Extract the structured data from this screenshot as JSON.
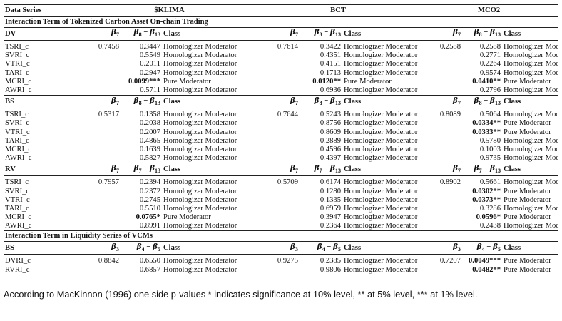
{
  "header": {
    "label": "Data Series",
    "series": [
      "$KLIMA",
      "BCT",
      "MCO2"
    ]
  },
  "sections": [
    {
      "title": "Interaction Term of Tokenized Carbon Asset On-chain Trading",
      "blocks": [
        {
          "name": "DV",
          "b_label": "β7",
          "diff_label": "β8 − β13",
          "class_label": "Class",
          "b_values": [
            "0.7458",
            "0.7614",
            "0.2588"
          ],
          "rows": [
            {
              "label": "TSRI_c",
              "cells": [
                [
                  "0.3447",
                  "Homologizer Moderator",
                  false
                ],
                [
                  "0.3422",
                  "Homologizer Moderator",
                  false
                ],
                [
                  "0.2588",
                  "Homologizer Moderator",
                  false
                ]
              ]
            },
            {
              "label": "SVRI_c",
              "cells": [
                [
                  "0.5549",
                  "Homologizer Moderator",
                  false
                ],
                [
                  "0.4351",
                  "Homologizer Moderator",
                  false
                ],
                [
                  "0.2771",
                  "Homologizer Moderator",
                  false
                ]
              ]
            },
            {
              "label": "VTRI_c",
              "cells": [
                [
                  "0.2011",
                  "Homologizer Moderator",
                  false
                ],
                [
                  "0.4151",
                  "Homologizer Moderator",
                  false
                ],
                [
                  "0.2264",
                  "Homologizer Moderator",
                  false
                ]
              ]
            },
            {
              "label": "TARI_c",
              "cells": [
                [
                  "0.2947",
                  "Homologizer Moderator",
                  false
                ],
                [
                  "0.1713",
                  "Homologizer Moderator",
                  false
                ],
                [
                  "0.9574",
                  "Homologizer Moderator",
                  false
                ]
              ]
            },
            {
              "label": "MCRI_c",
              "cells": [
                [
                  "0.0099***",
                  "Pure Moderator",
                  true
                ],
                [
                  "0.0120**",
                  "Pure Moderator",
                  true
                ],
                [
                  "0.0410**",
                  "Pure Moderator",
                  true
                ]
              ]
            },
            {
              "label": "AWRI_c",
              "cells": [
                [
                  "0.5711",
                  "Homologizer Moderator",
                  false
                ],
                [
                  "0.6936",
                  "Homologizer Moderator",
                  false
                ],
                [
                  "0.2796",
                  "Homologizer Moderator",
                  false
                ]
              ]
            }
          ]
        },
        {
          "name": "BS",
          "b_label": "β7",
          "diff_label": "β8 − β13",
          "class_label": "Class",
          "b_values": [
            "0.5317",
            "0.7644",
            "0.8089"
          ],
          "rows": [
            {
              "label": "TSRI_c",
              "cells": [
                [
                  "0.1358",
                  "Homologizer Moderator",
                  false
                ],
                [
                  "0.5243",
                  "Homologizer Moderator",
                  false
                ],
                [
                  "0.5064",
                  "Homologizer Moderator",
                  false
                ]
              ]
            },
            {
              "label": "SVRI_c",
              "cells": [
                [
                  "0.2038",
                  "Homologizer Moderator",
                  false
                ],
                [
                  "0.8756",
                  "Homologizer Moderator",
                  false
                ],
                [
                  "0.0334**",
                  "Pure Moderator",
                  true
                ]
              ]
            },
            {
              "label": "VTRI_c",
              "cells": [
                [
                  "0.2007",
                  "Homologizer Moderator",
                  false
                ],
                [
                  "0.8609",
                  "Homologizer Moderator",
                  false
                ],
                [
                  "0.0333**",
                  "Pure Moderator",
                  true
                ]
              ]
            },
            {
              "label": "TARI_c",
              "cells": [
                [
                  "0.4865",
                  "Homologizer Moderator",
                  false
                ],
                [
                  "0.2889",
                  "Homologizer Moderator",
                  false
                ],
                [
                  "0.5780",
                  "Homologizer Moderator",
                  false
                ]
              ]
            },
            {
              "label": "MCRI_c",
              "cells": [
                [
                  "0.1639",
                  "Homologizer Moderator",
                  false
                ],
                [
                  "0.4596",
                  "Homologizer Moderator",
                  false
                ],
                [
                  "0.1003",
                  "Homologizer Moderator",
                  false
                ]
              ]
            },
            {
              "label": "AWRI_c",
              "cells": [
                [
                  "0.5827",
                  "Homologizer Moderator",
                  false
                ],
                [
                  "0.4397",
                  "Homologizer Moderator",
                  false
                ],
                [
                  "0.9735",
                  "Homologizer Moderator",
                  false
                ]
              ]
            }
          ]
        },
        {
          "name": "RV",
          "b_label": "β7",
          "diff_label": "β7 − β13",
          "class_label": "Class",
          "b_values": [
            "0.7957",
            "0.5709",
            "0.8902"
          ],
          "rows": [
            {
              "label": "TSRI_c",
              "cells": [
                [
                  "0.2394",
                  "Homologizer Moderator",
                  false
                ],
                [
                  "0.6174",
                  "Homologizer Moderator",
                  false
                ],
                [
                  "0.5661",
                  "Homologizer Moderator",
                  false
                ]
              ]
            },
            {
              "label": "SVRI_c",
              "cells": [
                [
                  "0.2372",
                  "Homologizer Moderator",
                  false
                ],
                [
                  "0.1280",
                  "Homologizer Moderator",
                  false
                ],
                [
                  "0.0302**",
                  "Pure Moderator",
                  true
                ]
              ]
            },
            {
              "label": "VTRI_c",
              "cells": [
                [
                  "0.2745",
                  "Homologizer Moderator",
                  false
                ],
                [
                  "0.1335",
                  "Homologizer Moderator",
                  false
                ],
                [
                  "0.0373**",
                  "Pure Moderator",
                  true
                ]
              ]
            },
            {
              "label": "TARI_c",
              "cells": [
                [
                  "0.5510",
                  "Homologizer Moderator",
                  false
                ],
                [
                  "0.6959",
                  "Homologizer Moderator",
                  false
                ],
                [
                  "0.3286",
                  "Homologizer Moderator",
                  false
                ]
              ]
            },
            {
              "label": "MCRI_c",
              "cells": [
                [
                  "0.0765*",
                  "Pure Moderator",
                  true
                ],
                [
                  "0.3947",
                  "Homologizer Moderator",
                  false
                ],
                [
                  "0.0596*",
                  "Pure Moderator",
                  true
                ]
              ]
            },
            {
              "label": "AWRI_c",
              "cells": [
                [
                  "0.8991",
                  "Homologizer Moderator",
                  false
                ],
                [
                  "0.2364",
                  "Homologizer Moderator",
                  false
                ],
                [
                  "0.2438",
                  "Homologizer Moderator",
                  false
                ]
              ]
            }
          ]
        }
      ]
    },
    {
      "title": "Interaction Term in Liquidity Series of VCMs",
      "blocks": [
        {
          "name": "BS",
          "b_label": "β3",
          "diff_label": "β4 − β5",
          "class_label": "Class",
          "b_values": [
            "0.8842",
            "0.9275",
            "0.7207"
          ],
          "rows": [
            {
              "label": "DVRI_c",
              "cells": [
                [
                  "0.6550",
                  "Homologizer Moderator",
                  false
                ],
                [
                  "0.2385",
                  "Homologizer Moderator",
                  false
                ],
                [
                  "0.0049***",
                  "Pure Moderator",
                  true
                ]
              ]
            },
            {
              "label": "RVRI_c",
              "cells": [
                [
                  "0.6857",
                  "Homologizer Moderator",
                  false
                ],
                [
                  "0.9806",
                  "Homologizer Moderator",
                  false
                ],
                [
                  "0.0482**",
                  "Pure Moderator",
                  true
                ]
              ]
            }
          ]
        }
      ]
    }
  ],
  "footnote": "According to MacKinnon (1996) one side p-values * indicates significance at 10% level, ** at 5% level, *** at 1% level."
}
